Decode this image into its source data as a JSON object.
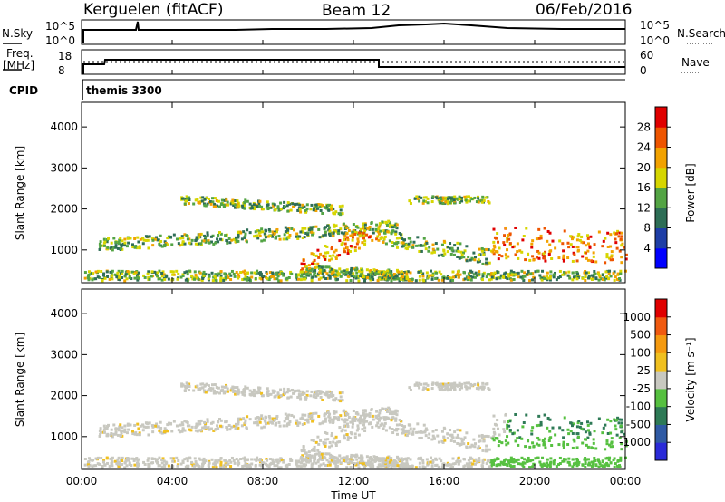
{
  "header": {
    "station": "Kerguelen (fitACF)",
    "beam": "Beam 12",
    "date": "06/Feb/2016"
  },
  "top_panels": {
    "nsky_label": "N.Sky",
    "nsky_ticks": [
      "10^5",
      "10^0"
    ],
    "nsearch_label": "N.Search",
    "nsearch_ticks": [
      "10^5",
      "10^0"
    ],
    "freq_label_1": "Freq.",
    "freq_label_2": "[MHz]",
    "freq_ticks": [
      "18",
      "8"
    ],
    "nave_label": "Nave",
    "nave_ticks": [
      "60",
      "0"
    ],
    "cpid_label": "CPID",
    "cpid_value": "themis 3300"
  },
  "chart_data": [
    {
      "type": "heatmap",
      "name": "power",
      "ylabel": "Slant Range [km]",
      "ylim": [
        200,
        4600
      ],
      "yticks": [
        "4000",
        "3000",
        "2000",
        "1000"
      ],
      "colorbar_label": "Power [dB]",
      "colorbar_ticks": [
        "28",
        "24",
        "20",
        "16",
        "12",
        "8",
        "4"
      ],
      "colorbar_colors": [
        "#0000ff",
        "#1e3ea6",
        "#2e6e56",
        "#53a444",
        "#d6d600",
        "#f2a200",
        "#ee5500",
        "#e00000"
      ]
    },
    {
      "type": "heatmap",
      "name": "velocity",
      "ylabel": "Slant Range [km]",
      "ylim": [
        200,
        4600
      ],
      "yticks": [
        "4000",
        "3000",
        "2000",
        "1000"
      ],
      "colorbar_label": "Velocity [m s⁻¹]",
      "colorbar_ticks": [
        "1000",
        "500",
        "100",
        "25",
        "-25",
        "-100",
        "-500",
        "-1000"
      ],
      "colorbar_colors": [
        "#2a2ad8",
        "#2f5aa4",
        "#2e7a56",
        "#56c040",
        "#c8c8c0",
        "#f0c020",
        "#f59a10",
        "#f05a10",
        "#e00000"
      ]
    }
  ],
  "x_axis": {
    "label": "Time UT",
    "ticks": [
      "00:00",
      "04:00",
      "08:00",
      "12:00",
      "16:00",
      "20:00",
      "00:00"
    ]
  }
}
